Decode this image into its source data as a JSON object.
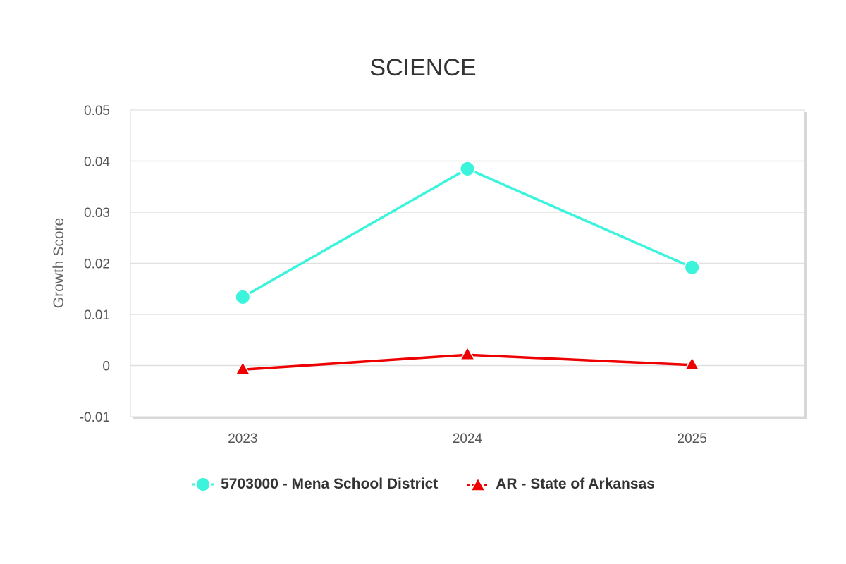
{
  "chart_data": {
    "type": "line",
    "title": "SCIENCE",
    "xlabel": "",
    "ylabel": "Growth Score",
    "categories": [
      "2023",
      "2024",
      "2025"
    ],
    "ylim": [
      -0.01,
      0.05
    ],
    "yticks": [
      -0.01,
      0,
      0.01,
      0.02,
      0.03,
      0.04,
      0.05
    ],
    "ytick_labels": [
      "-0.01",
      "0",
      "0.01",
      "0.02",
      "0.03",
      "0.04",
      "0.05"
    ],
    "grid": true,
    "legend_position": "bottom-center",
    "series": [
      {
        "name": "5703000 - Mena School District",
        "values": [
          0.0134,
          0.0385,
          0.0192
        ],
        "color": "#3cf4dc",
        "marker": "circle"
      },
      {
        "name": "AR - State of Arkansas",
        "values": [
          -0.0008,
          0.0021,
          0.0001
        ],
        "color": "#ee0000",
        "marker": "triangle"
      }
    ]
  }
}
